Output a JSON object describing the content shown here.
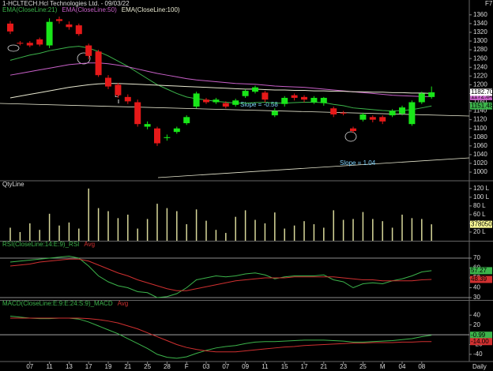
{
  "window": {
    "tag": "F7"
  },
  "chart_data": [
    {
      "type": "candlestick",
      "title": "1-HCLTECH.Hcl Technologies Ltd. - 09/03/22",
      "interval": "Daily",
      "categories": [
        null,
        null,
        "07",
        null,
        "11",
        null,
        "13",
        null,
        "17",
        null,
        "19",
        null,
        "21",
        null,
        "25",
        null,
        "28",
        null,
        "F",
        null,
        "03",
        null,
        "07",
        null,
        "09",
        null,
        "11",
        null,
        "15",
        null,
        "17",
        null,
        "21",
        null,
        "23",
        null,
        "25",
        null,
        "M",
        null,
        "04",
        null,
        "08",
        null
      ],
      "open": [
        1340,
        1296,
        1296,
        1304,
        1290,
        1350,
        1338,
        1336,
        1290,
        1276,
        1216,
        1200,
        1172,
        1160,
        1104,
        1100,
        1078,
        1092,
        1112,
        1150,
        1166,
        1160,
        1158,
        1154,
        1174,
        1184,
        1182,
        1130,
        1156,
        1176,
        1172,
        1160,
        1158,
        1146,
        1136,
        1100,
        1120,
        1126,
        1126,
        1130,
        1134,
        1110,
        1160,
        1172
      ],
      "high": [
        1346,
        1300,
        1300,
        1308,
        1352,
        1356,
        1345,
        1340,
        1294,
        1280,
        1222,
        1204,
        1178,
        1166,
        1116,
        1104,
        1086,
        1104,
        1130,
        1184,
        1170,
        1170,
        1162,
        1168,
        1190,
        1198,
        1186,
        1146,
        1174,
        1180,
        1176,
        1174,
        1172,
        1150,
        1140,
        1104,
        1136,
        1130,
        1130,
        1144,
        1152,
        1164,
        1184,
        1196
      ],
      "low": [
        1316,
        1290,
        1286,
        1288,
        1284,
        1340,
        1326,
        1312,
        1258,
        1218,
        1190,
        1170,
        1156,
        1104,
        1098,
        1060,
        1072,
        1088,
        1108,
        1146,
        1156,
        1156,
        1146,
        1150,
        1170,
        1180,
        1160,
        1126,
        1150,
        1164,
        1160,
        1156,
        1152,
        1126,
        1130,
        1090,
        1116,
        1114,
        1110,
        1126,
        1130,
        1106,
        1156,
        1168
      ],
      "close": [
        1322,
        1294,
        1290,
        1292,
        1344,
        1346,
        1332,
        1316,
        1266,
        1222,
        1196,
        1176,
        1162,
        1110,
        1110,
        1066,
        1080,
        1100,
        1126,
        1180,
        1160,
        1166,
        1150,
        1164,
        1186,
        1194,
        1166,
        1140,
        1170,
        1170,
        1166,
        1170,
        1170,
        1132,
        1134,
        1094,
        1132,
        1120,
        1116,
        1140,
        1148,
        1160,
        1180,
        1182.7
      ],
      "close_label": "1182.70",
      "up_color": "#19e619",
      "down_color": "#e61919",
      "series": [
        {
          "name": "EMA(CloseLine:21)",
          "color": "#3cb44b",
          "end_label": "1151.48",
          "values": [
            1256,
            1262,
            1268,
            1272,
            1278,
            1282,
            1286,
            1288,
            1284,
            1276,
            1266,
            1254,
            1242,
            1228,
            1214,
            1200,
            1190,
            1180,
            1172,
            1168,
            1165,
            1162,
            1160,
            1158,
            1158,
            1159,
            1160,
            1158,
            1158,
            1159,
            1160,
            1160,
            1159,
            1155,
            1152,
            1147,
            1145,
            1143,
            1141,
            1140,
            1141,
            1143,
            1147,
            1151.48
          ]
        },
        {
          "name": "EMA(CloseLine:50)",
          "color": "#c860c8",
          "end_label": "1172.84",
          "values": [
            1222,
            1226,
            1230,
            1234,
            1238,
            1242,
            1246,
            1248,
            1250,
            1250,
            1248,
            1245,
            1241,
            1236,
            1231,
            1226,
            1222,
            1218,
            1214,
            1211,
            1209,
            1207,
            1205,
            1203,
            1202,
            1201,
            1199,
            1197,
            1196,
            1195,
            1194,
            1192,
            1190,
            1188,
            1186,
            1184,
            1182,
            1180,
            1178,
            1176,
            1175,
            1174,
            1173,
            1172.84
          ]
        },
        {
          "name": "EMA(CloseLine:100)",
          "color": "#e8e8d0",
          "values": [
            1170,
            1174,
            1178,
            1182,
            1186,
            1190,
            1194,
            1197,
            1200,
            1202,
            1203,
            1203,
            1202,
            1201,
            1200,
            1199,
            1198,
            1197,
            1196,
            1195,
            1194,
            1193,
            1192,
            1191,
            1190,
            1190,
            1189,
            1188,
            1188,
            1187,
            1187,
            1186,
            1186,
            1185,
            1185,
            1184,
            1184,
            1183,
            1183,
            1182,
            1182,
            1181,
            1181,
            1180
          ]
        }
      ],
      "slope_upper": "Slope = -0.58",
      "slope_lower": "Slope = 1.04",
      "marker": "D",
      "ylim": [
        982,
        1394
      ],
      "yticks": [
        1000,
        1020,
        1040,
        1060,
        1080,
        1100,
        1120,
        1140,
        1160,
        1180,
        1200,
        1220,
        1240,
        1260,
        1280,
        1300,
        1320,
        1340,
        1360
      ]
    },
    {
      "type": "bar",
      "title": "QtyLine",
      "color": "#d8d89a",
      "last_label": "3780505",
      "values": [
        30,
        20,
        40,
        25,
        62,
        35,
        42,
        28,
        120,
        75,
        68,
        52,
        60,
        28,
        50,
        85,
        75,
        68,
        38,
        72,
        46,
        25,
        18,
        55,
        70,
        48,
        40,
        65,
        28,
        35,
        45,
        38,
        30,
        70,
        48,
        50,
        66,
        50,
        45,
        30,
        60,
        52,
        50,
        37.8
      ],
      "ylim": [
        0,
        136
      ],
      "yticks": [
        {
          "value": 20,
          "label": "20 L"
        },
        {
          "value": 40,
          "label": "40 L"
        },
        {
          "value": 60,
          "label": "60 L"
        },
        {
          "value": 80,
          "label": "80 L"
        },
        {
          "value": 100,
          "label": "100 L"
        },
        {
          "value": 120,
          "label": "120 L"
        }
      ]
    },
    {
      "type": "line",
      "series": [
        {
          "name": "RSI(CloseLine:14:E:9)_RSI",
          "color": "#3cb44b",
          "end_label": "57.27",
          "values": [
            66,
            67,
            68,
            69,
            70,
            71,
            72,
            70,
            62,
            52,
            46,
            42,
            40,
            36,
            35,
            30,
            31,
            34,
            40,
            48,
            50,
            52,
            51,
            52,
            54,
            55,
            53,
            49,
            51,
            52,
            52,
            52,
            53,
            48,
            46,
            40,
            44,
            45,
            44,
            47,
            49,
            52,
            56,
            57.27
          ]
        },
        {
          "name": "Avg",
          "color": "#d03030",
          "end_label": "48.39",
          "values": [
            62,
            63,
            64,
            66,
            67,
            68,
            69,
            69,
            67,
            63,
            59,
            55,
            52,
            48,
            45,
            42,
            39,
            37,
            37,
            39,
            41,
            43,
            45,
            47,
            48,
            49,
            50,
            50,
            50,
            51,
            51,
            51,
            51,
            51,
            50,
            49,
            48,
            48,
            47,
            47,
            47,
            47,
            48,
            48.39
          ]
        }
      ],
      "hlines": [
        30,
        70
      ],
      "ylim": [
        27.6,
        86.8
      ],
      "yticks": [
        30,
        40,
        50,
        60,
        70
      ]
    },
    {
      "type": "line",
      "series": [
        {
          "name": "MACD(CloseLine:E:9:E:24:S:9)_MACD",
          "color": "#3cb44b",
          "end_label": "-0.99",
          "values": [
            38,
            36,
            34,
            33,
            33,
            34,
            34,
            32,
            26,
            18,
            10,
            2,
            -8,
            -18,
            -28,
            -40,
            -46,
            -48,
            -45,
            -38,
            -32,
            -27,
            -24,
            -22,
            -18,
            -15,
            -14,
            -14,
            -13,
            -12,
            -11,
            -11,
            -11,
            -12,
            -13,
            -15,
            -15,
            -14,
            -13,
            -12,
            -10,
            -8,
            -4,
            -0.99
          ]
        },
        {
          "name": "Avg",
          "color": "#d03030",
          "end_label": "-14.00",
          "values": [
            34,
            34,
            34,
            34,
            34,
            34,
            34,
            34,
            33,
            31,
            28,
            24,
            18,
            12,
            4,
            -4,
            -12,
            -20,
            -26,
            -30,
            -33,
            -35,
            -35,
            -35,
            -33,
            -31,
            -29,
            -27,
            -25,
            -24,
            -22,
            -21,
            -20,
            -19,
            -18,
            -17,
            -17,
            -16,
            -16,
            -16,
            -15,
            -15,
            -14,
            -14
          ]
        }
      ],
      "hlines": [
        0
      ],
      "ylim": [
        -54.7,
        69.4
      ],
      "yticks": [
        -40,
        -20,
        20,
        40
      ]
    }
  ]
}
